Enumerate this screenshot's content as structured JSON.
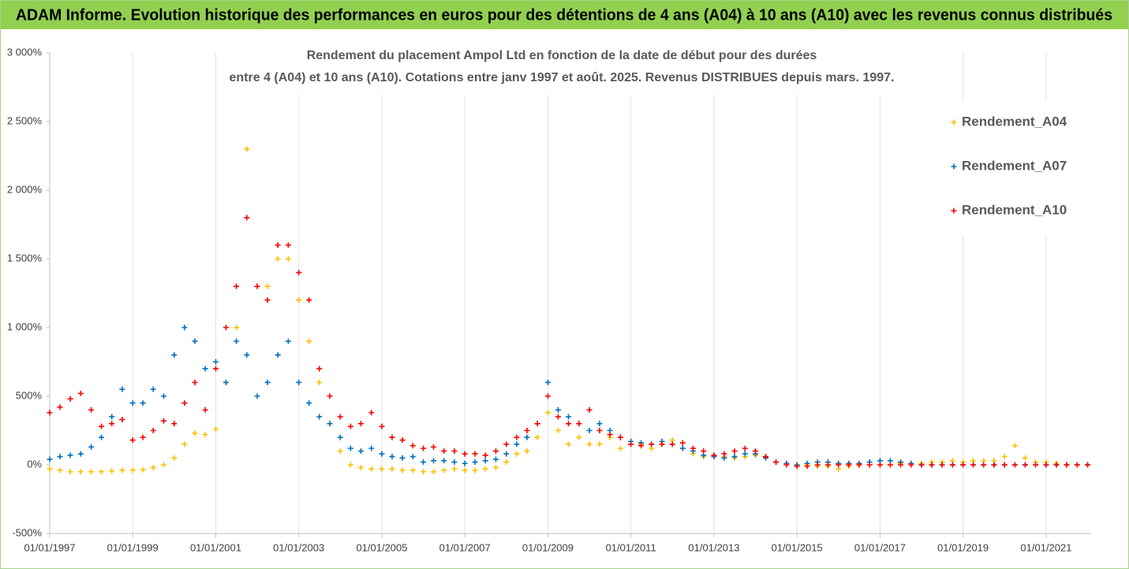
{
  "chart_data": {
    "type": "scatter",
    "title": "ADAM Informe. Evolution historique des performances en euros pour des détentions de 4 ans (A04) à 10 ans (A10) avec les revenus connus distribués",
    "subtitle": [
      "Rendement du placement Ampol Ltd en fonction de la date de début pour des durées",
      "entre 4 (A04) et 10 ans (A10). Cotations entre janv 1997 et août. 2025. Revenus DISTRIBUES depuis mars. 1997."
    ],
    "x": [
      "1997-01-01",
      "1997-04-01",
      "1997-07-01",
      "1997-10-01",
      "1998-01-01",
      "1998-04-01",
      "1998-07-01",
      "1998-10-01",
      "1999-01-01",
      "1999-04-01",
      "1999-07-01",
      "1999-10-01",
      "2000-01-01",
      "2000-04-01",
      "2000-07-01",
      "2000-10-01",
      "2001-01-01",
      "2001-04-01",
      "2001-07-01",
      "2001-10-01",
      "2002-01-01",
      "2002-04-01",
      "2002-07-01",
      "2002-10-01",
      "2003-01-01",
      "2003-04-01",
      "2003-07-01",
      "2003-10-01",
      "2004-01-01",
      "2004-04-01",
      "2004-07-01",
      "2004-10-01",
      "2005-01-01",
      "2005-04-01",
      "2005-07-01",
      "2005-10-01",
      "2006-01-01",
      "2006-04-01",
      "2006-07-01",
      "2006-10-01",
      "2007-01-01",
      "2007-04-01",
      "2007-07-01",
      "2007-10-01",
      "2008-01-01",
      "2008-04-01",
      "2008-07-01",
      "2008-10-01",
      "2009-01-01",
      "2009-04-01",
      "2009-07-01",
      "2009-10-01",
      "2010-01-01",
      "2010-04-01",
      "2010-07-01",
      "2010-10-01",
      "2011-01-01",
      "2011-04-01",
      "2011-07-01",
      "2011-10-01",
      "2012-01-01",
      "2012-04-01",
      "2012-07-01",
      "2012-10-01",
      "2013-01-01",
      "2013-04-01",
      "2013-07-01",
      "2013-10-01",
      "2014-01-01",
      "2014-04-01",
      "2014-07-01",
      "2014-10-01",
      "2015-01-01",
      "2015-04-01",
      "2015-07-01",
      "2015-10-01",
      "2016-01-01",
      "2016-04-01",
      "2016-07-01",
      "2016-10-01",
      "2017-01-01",
      "2017-04-01",
      "2017-07-01",
      "2017-10-01",
      "2018-01-01",
      "2018-04-01",
      "2018-07-01",
      "2018-10-01",
      "2019-01-01",
      "2019-04-01",
      "2019-07-01",
      "2019-10-01",
      "2020-01-01",
      "2020-04-01",
      "2020-07-01",
      "2020-10-01",
      "2021-01-01",
      "2021-04-01",
      "2021-07-01",
      "2021-10-01",
      "2022-01-01"
    ],
    "series": [
      {
        "name": "Rendement_A04",
        "color": "#ffc000",
        "values": [
          -30,
          -40,
          -50,
          -50,
          -50,
          -50,
          -45,
          -40,
          -40,
          -35,
          -20,
          0,
          50,
          150,
          230,
          220,
          260,
          600,
          1000,
          2300,
          1300,
          1300,
          1500,
          1500,
          1200,
          900,
          600,
          300,
          100,
          0,
          -20,
          -30,
          -30,
          -30,
          -40,
          -40,
          -50,
          -50,
          -40,
          -30,
          -40,
          -40,
          -30,
          -20,
          20,
          80,
          100,
          200,
          380,
          250,
          150,
          200,
          150,
          150,
          200,
          120,
          150,
          150,
          120,
          150,
          180,
          120,
          80,
          60,
          60,
          60,
          50,
          60,
          70,
          60,
          20,
          10,
          0,
          0,
          -10,
          -10,
          -30,
          -10,
          0,
          0,
          0,
          0,
          10,
          10,
          10,
          20,
          20,
          30,
          20,
          30,
          30,
          30,
          60,
          140,
          50,
          20,
          20,
          10,
          0,
          0,
          0
        ]
      },
      {
        "name": "Rendement_A07",
        "color": "#0070c0",
        "values": [
          40,
          60,
          70,
          80,
          130,
          200,
          350,
          550,
          450,
          450,
          550,
          500,
          800,
          1000,
          900,
          700,
          750,
          600,
          900,
          800,
          500,
          600,
          800,
          900,
          600,
          450,
          350,
          300,
          200,
          120,
          100,
          120,
          80,
          60,
          50,
          60,
          20,
          30,
          30,
          20,
          10,
          20,
          30,
          40,
          80,
          150,
          200,
          300,
          600,
          400,
          350,
          300,
          250,
          300,
          250,
          200,
          170,
          160,
          150,
          170,
          150,
          120,
          100,
          70,
          60,
          50,
          60,
          80,
          80,
          50,
          20,
          10,
          0,
          10,
          20,
          20,
          10,
          10,
          10,
          20,
          30,
          30,
          20,
          10,
          0,
          0,
          0,
          0,
          0,
          0,
          0,
          0,
          0,
          0,
          0,
          0,
          0,
          0,
          0,
          0,
          0
        ]
      },
      {
        "name": "Rendement_A10",
        "color": "#ff0000",
        "values": [
          380,
          420,
          480,
          520,
          400,
          280,
          300,
          330,
          180,
          200,
          250,
          320,
          300,
          450,
          600,
          400,
          700,
          1000,
          1300,
          1800,
          1300,
          1200,
          1600,
          1600,
          1400,
          1200,
          700,
          500,
          350,
          280,
          300,
          380,
          280,
          200,
          180,
          140,
          120,
          130,
          100,
          100,
          80,
          80,
          70,
          100,
          150,
          200,
          250,
          300,
          500,
          350,
          300,
          300,
          400,
          250,
          220,
          200,
          150,
          140,
          150,
          150,
          150,
          160,
          120,
          100,
          70,
          80,
          100,
          120,
          100,
          60,
          20,
          0,
          -10,
          -10,
          0,
          0,
          0,
          0,
          0,
          0,
          0,
          0,
          0,
          0,
          0,
          0,
          0,
          0,
          0,
          0,
          0,
          0,
          0,
          0,
          0,
          0,
          0,
          0,
          0,
          0,
          0
        ]
      }
    ],
    "xlim": [
      "1997-01-01",
      "2022-02-01"
    ],
    "xticks": [
      {
        "value": "1997-01-01",
        "label": "01/01/1997"
      },
      {
        "value": "1999-01-01",
        "label": "01/01/1999"
      },
      {
        "value": "2001-01-01",
        "label": "01/01/2001"
      },
      {
        "value": "2003-01-01",
        "label": "01/01/2003"
      },
      {
        "value": "2005-01-01",
        "label": "01/01/2005"
      },
      {
        "value": "2007-01-01",
        "label": "01/01/2007"
      },
      {
        "value": "2009-01-01",
        "label": "01/01/2009"
      },
      {
        "value": "2011-01-01",
        "label": "01/01/2011"
      },
      {
        "value": "2013-01-01",
        "label": "01/01/2013"
      },
      {
        "value": "2015-01-01",
        "label": "01/01/2015"
      },
      {
        "value": "2017-01-01",
        "label": "01/01/2017"
      },
      {
        "value": "2019-01-01",
        "label": "01/01/2019"
      },
      {
        "value": "2021-01-01",
        "label": "01/01/2021"
      }
    ],
    "ylim": [
      -500,
      3000
    ],
    "yticks": [
      {
        "value": -500,
        "label": "-500%"
      },
      {
        "value": 0,
        "label": "0%"
      },
      {
        "value": 500,
        "label": "500%"
      },
      {
        "value": 1000,
        "label": "1 000%"
      },
      {
        "value": 1500,
        "label": "1 500%"
      },
      {
        "value": 2000,
        "label": "2 000%"
      },
      {
        "value": 2500,
        "label": "2 500%"
      },
      {
        "value": 3000,
        "label": "3 000%"
      }
    ],
    "grid": true,
    "legend": "right"
  }
}
